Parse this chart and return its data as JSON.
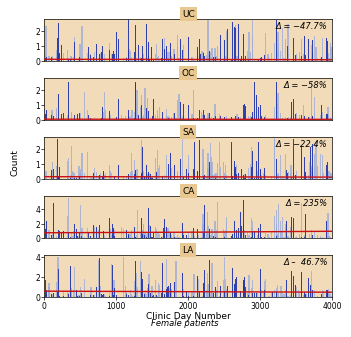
{
  "panels": [
    {
      "label": "UC",
      "delta": "Δ = −47.7%",
      "ylim": [
        0,
        2.8
      ],
      "yticks": [
        0,
        1,
        2
      ],
      "red_y": [
        0.13,
        0.13,
        0.12,
        0.11,
        0.1
      ]
    },
    {
      "label": "OC",
      "delta": "Δ = −58%",
      "ylim": [
        0,
        2.8
      ],
      "yticks": [
        0,
        1,
        2
      ],
      "red_y": [
        0.07,
        0.07,
        0.07,
        0.06,
        0.06
      ]
    },
    {
      "label": "SA",
      "delta": "Δ = −22.4%",
      "ylim": [
        0,
        2.8
      ],
      "yticks": [
        0,
        1,
        2
      ],
      "red_y": [
        0.17,
        0.17,
        0.16,
        0.15,
        0.14
      ]
    },
    {
      "label": "CA",
      "delta": "Δ = 235%",
      "ylim": [
        0,
        5.8
      ],
      "yticks": [
        0,
        2,
        4
      ],
      "red_y": [
        0.75,
        0.78,
        0.82,
        0.88,
        0.95
      ]
    },
    {
      "label": "LA",
      "delta": "Δ –  46.7%",
      "ylim": [
        0,
        4.2
      ],
      "yticks": [
        0,
        2,
        4
      ],
      "red_y": [
        0.6,
        0.58,
        0.55,
        0.52,
        0.5
      ]
    }
  ],
  "x_min": 0,
  "x_max": 4000,
  "xlabel": "Clinic Day Number",
  "ylabel": "Count",
  "subtitle": "Female patients",
  "bg_color": "#f2dbb8",
  "bar_color_light": "#99aadd",
  "bar_color_dark": "#2233aa",
  "red_line_color": "#cc1111",
  "title_bg_color": "#e8c890",
  "n_bars": 350,
  "seed": 123
}
